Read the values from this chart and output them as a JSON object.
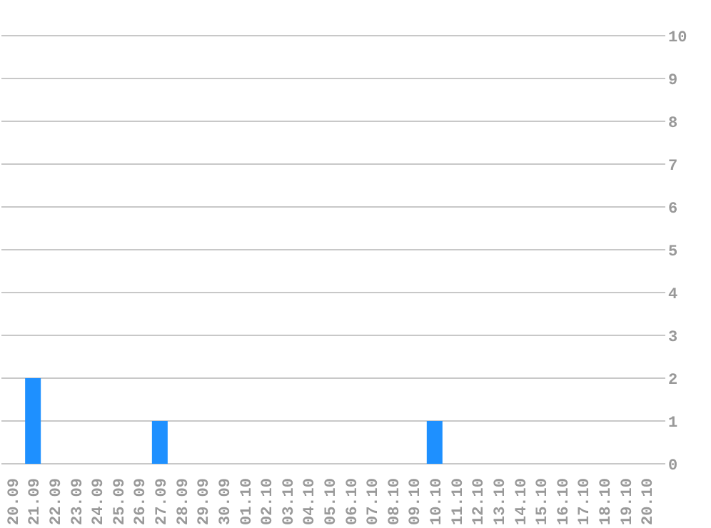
{
  "chart_data": {
    "type": "bar",
    "categories": [
      "20.09",
      "21.09",
      "22.09",
      "23.09",
      "24.09",
      "25.09",
      "26.09",
      "27.09",
      "28.09",
      "29.09",
      "30.09",
      "01.10",
      "02.10",
      "03.10",
      "04.10",
      "05.10",
      "06.10",
      "07.10",
      "08.10",
      "09.10",
      "10.10",
      "11.10",
      "12.10",
      "13.10",
      "14.10",
      "15.10",
      "16.10",
      "17.10",
      "18.10",
      "19.10",
      "20.10"
    ],
    "values": [
      0,
      2,
      0,
      0,
      0,
      0,
      0,
      1,
      0,
      0,
      0,
      0,
      0,
      0,
      0,
      0,
      0,
      0,
      0,
      0,
      1,
      0,
      0,
      0,
      0,
      0,
      0,
      0,
      0,
      0,
      0
    ],
    "color": "#1e90ff",
    "ylim": [
      0,
      10
    ],
    "yticks": [
      0,
      1,
      2,
      3,
      4,
      5,
      6,
      7,
      8,
      9,
      10
    ],
    "grid": "y"
  }
}
